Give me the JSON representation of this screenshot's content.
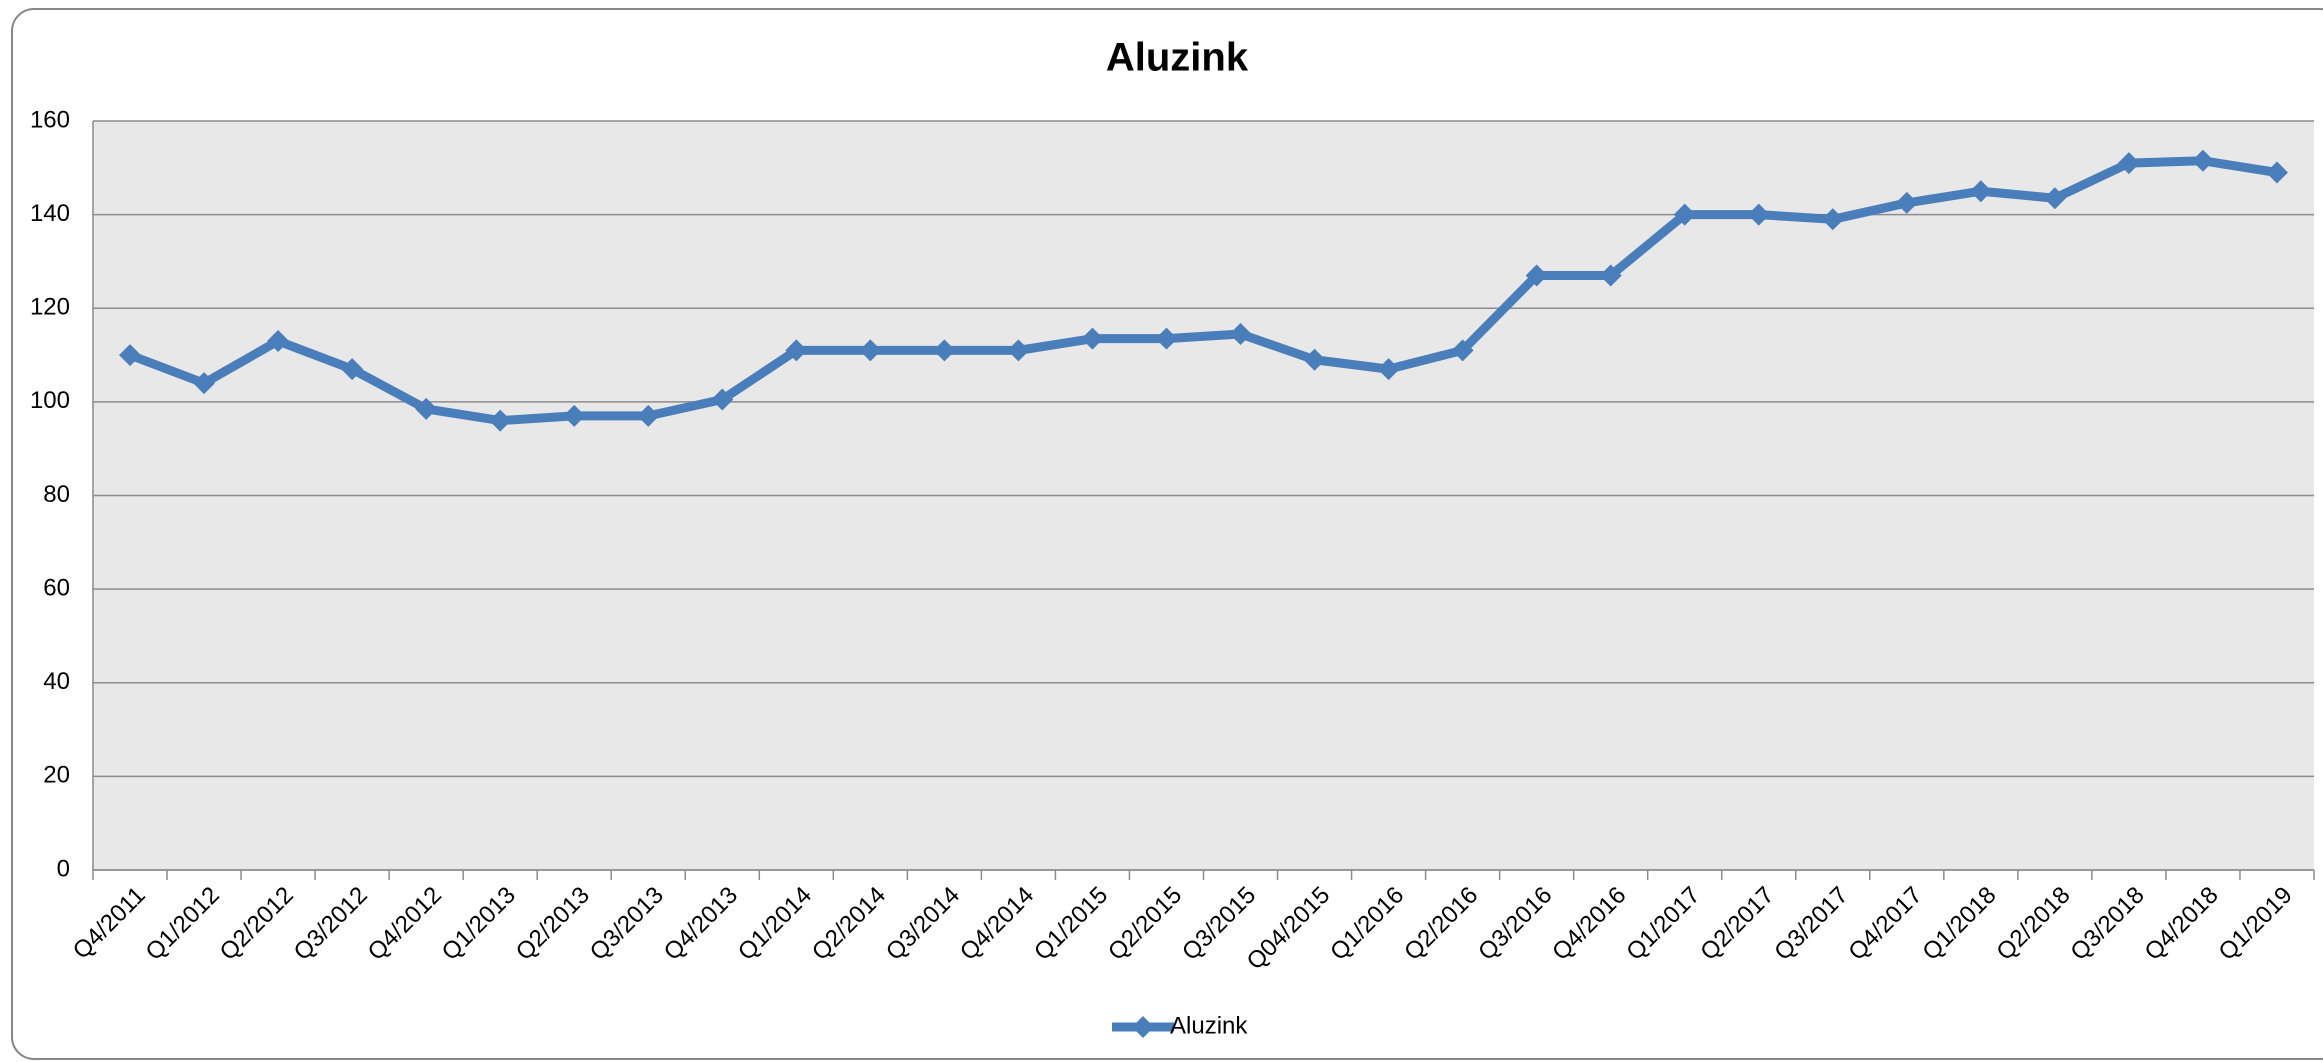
{
  "chart_data": {
    "type": "line",
    "title": "Aluzink",
    "categories": [
      "Q4/2011",
      "Q1/2012",
      "Q2/2012",
      "Q3/2012",
      "Q4/2012",
      "Q1/2013",
      "Q2/2013",
      "Q3/2013",
      "Q4/2013",
      "Q1/2014",
      "Q2/2014",
      "Q3/2014",
      "Q4/2014",
      "Q1/2015",
      "Q2/2015",
      "Q3/2015",
      "Q04/2015",
      "Q1/2016",
      "Q2/2016",
      "Q3/2016",
      "Q4/2016",
      "Q1/2017",
      "Q2/2017",
      "Q3/2017",
      "Q4/2017",
      "Q1/2018",
      "Q2/2018",
      "Q3/2018",
      "Q4/2018",
      "Q1/2019"
    ],
    "series": [
      {
        "name": "Aluzink",
        "color": "#4a7ebb",
        "values": [
          110,
          104,
          113,
          107,
          98.5,
          96,
          97,
          97,
          100.5,
          111,
          111,
          111,
          111,
          113.5,
          113.5,
          114.5,
          109,
          107,
          111,
          127,
          127,
          140,
          140,
          139,
          142.5,
          145,
          143.5,
          151,
          151.5,
          149
        ]
      }
    ],
    "ylim": [
      0,
      160
    ],
    "yticks": [
      0,
      20,
      40,
      60,
      80,
      100,
      120,
      140,
      160
    ],
    "grid": true,
    "legend": "bottom"
  }
}
